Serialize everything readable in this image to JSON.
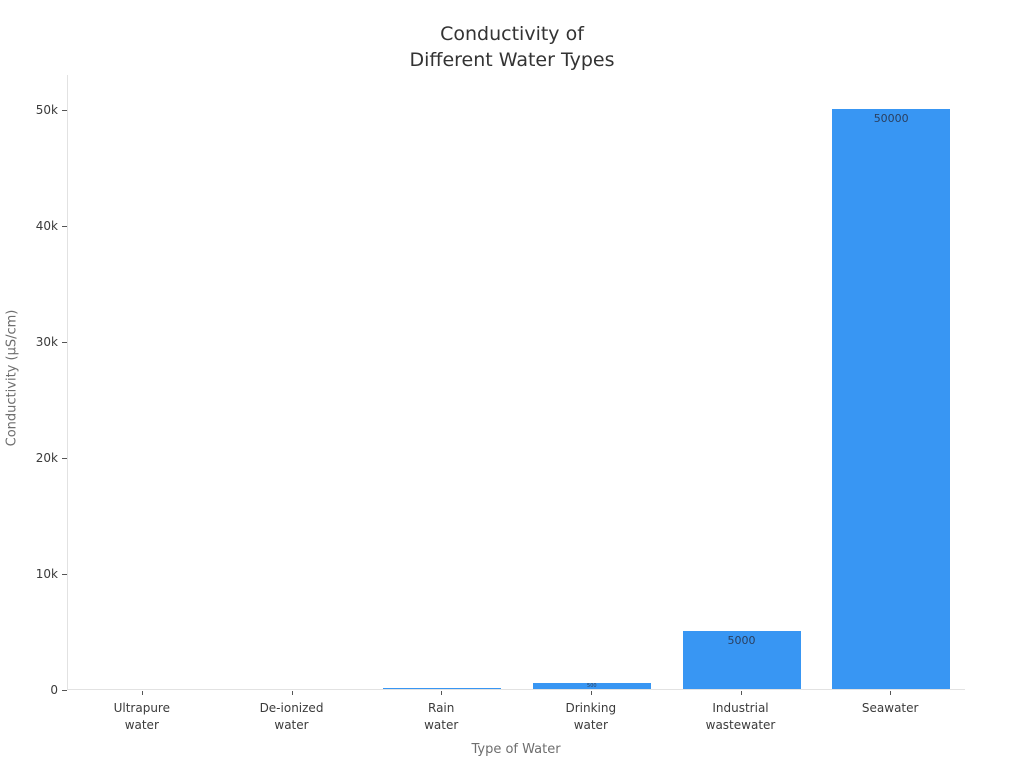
{
  "title": {
    "line1": "Conductivity of",
    "line2": "Different Water Types"
  },
  "chart_data": {
    "type": "bar",
    "title": "Conductivity of Different Water Types",
    "categories": [
      "Ultrapure\nwater",
      "De-ionized\nwater",
      "Rain\nwater",
      "Drinking\nwater",
      "Industrial\nwastewater",
      "Seawater"
    ],
    "values": [
      0,
      0,
      50,
      500,
      5000,
      50000
    ],
    "bar_labels": [
      "",
      "",
      "",
      "500",
      "5000",
      "50000"
    ],
    "xlabel": "Type of Water",
    "ylabel": "Conductivity (μS/cm)",
    "ylim": [
      0,
      53000
    ],
    "yticks": {
      "values": [
        0,
        10000,
        20000,
        30000,
        40000,
        50000
      ],
      "labels": [
        "0",
        "10k",
        "20k",
        "30k",
        "40k",
        "50k"
      ]
    },
    "grid": false,
    "legend": false
  },
  "colors": {
    "bar": "#3896f3",
    "bar_label": "#2a3f5f",
    "axis_line": "#e2e2e2",
    "tick_mark": "#555555",
    "tick_label": "#3b3b3b",
    "axis_title": "#6e6e6e",
    "title": "#333333",
    "background": "#ffffff"
  }
}
